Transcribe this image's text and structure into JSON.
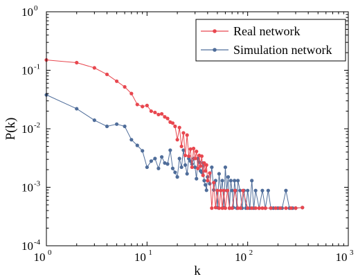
{
  "chart_data": {
    "type": "line",
    "xscale": "log",
    "yscale": "log",
    "xlim": [
      1,
      1000
    ],
    "ylim": [
      0.0001,
      1
    ],
    "xlabel": "k",
    "ylabel": "P(k)",
    "grid": false,
    "legend_position": "top-right",
    "x_tick_labels": [
      {
        "base": "10",
        "exp": "0"
      },
      {
        "base": "10",
        "exp": "1"
      },
      {
        "base": "10",
        "exp": "2"
      },
      {
        "base": "10",
        "exp": "3"
      }
    ],
    "y_tick_labels": [
      {
        "base": "10",
        "exp": "-4"
      },
      {
        "base": "10",
        "exp": "-3"
      },
      {
        "base": "10",
        "exp": "-2"
      },
      {
        "base": "10",
        "exp": "-1"
      },
      {
        "base": "10",
        "exp": "0"
      }
    ],
    "series": [
      {
        "name": "Real network",
        "color": "#e8474f",
        "x": [
          1,
          2,
          3,
          4,
          5,
          6,
          7,
          8,
          9,
          10,
          11,
          12,
          13,
          14,
          15,
          16,
          17,
          18,
          19,
          20,
          21,
          22,
          23,
          24,
          25,
          26,
          27,
          28,
          29,
          30,
          31,
          32,
          33,
          34,
          35,
          36,
          37,
          38,
          39,
          40,
          42,
          44,
          46,
          48,
          50,
          52,
          54,
          56,
          58,
          60,
          63,
          66,
          70,
          75,
          80,
          85,
          90,
          100,
          110,
          120,
          130,
          140,
          150,
          170,
          190,
          210,
          240,
          270,
          300,
          350
        ],
        "y": [
          0.15,
          0.135,
          0.11,
          0.085,
          0.065,
          0.052,
          0.04,
          0.026,
          0.024,
          0.025,
          0.02,
          0.019,
          0.0175,
          0.018,
          0.016,
          0.015,
          0.013,
          0.0125,
          0.011,
          0.0065,
          0.0105,
          0.005,
          0.0085,
          0.0035,
          0.0078,
          0.0034,
          0.0045,
          0.0022,
          0.0046,
          0.0031,
          0.0041,
          0.0021,
          0.0035,
          0.0023,
          0.0034,
          0.0016,
          0.0026,
          0.0019,
          0.0024,
          0.0013,
          0.00175,
          0.00044,
          0.0012,
          0.00045,
          0.00088,
          0.00044,
          0.00088,
          0.00044,
          0.00088,
          0.00044,
          0.00088,
          0.00044,
          0.00044,
          0.00088,
          0.00044,
          0.00044,
          0.00088,
          0.00044,
          0.00044,
          0.00044,
          0.00044,
          0.00044,
          0.00044,
          0.00044,
          0.00044,
          0.00044,
          0.00044,
          0.00044,
          0.00044,
          0.00045
        ]
      },
      {
        "name": "Simulation network",
        "color": "#4f6d9a",
        "x": [
          1,
          2,
          3,
          4,
          5,
          6,
          7,
          8,
          9,
          10,
          11,
          12,
          13,
          14,
          15,
          16,
          17,
          18,
          19,
          20,
          21,
          22,
          23,
          24,
          25,
          26,
          27,
          28,
          29,
          30,
          31,
          32,
          33,
          34,
          35,
          36,
          37,
          38,
          39,
          40,
          42,
          44,
          46,
          48,
          50,
          52,
          54,
          56,
          58,
          60,
          62,
          64,
          66,
          68,
          70,
          72,
          74,
          76,
          78,
          80,
          84,
          88,
          92,
          96,
          100,
          105,
          110,
          115,
          120,
          130,
          140,
          150,
          160,
          170,
          180,
          200,
          220,
          240,
          260,
          280,
          300,
          350
        ],
        "y": [
          0.038,
          0.022,
          0.014,
          0.011,
          0.012,
          0.011,
          0.0065,
          0.0052,
          0.0042,
          0.0022,
          0.0028,
          0.0031,
          0.0021,
          0.0033,
          0.0026,
          0.0025,
          0.0043,
          0.0021,
          0.0018,
          0.0015,
          0.0031,
          0.0022,
          0.0043,
          0.0024,
          0.0017,
          0.0031,
          0.0028,
          0.0025,
          0.0031,
          0.0022,
          0.0014,
          0.0031,
          0.0027,
          0.0019,
          0.0018,
          0.0026,
          0.0013,
          0.0011,
          0.00089,
          0.0015,
          0.00115,
          0.0022,
          0.0009,
          0.0013,
          0.00045,
          0.0017,
          0.00088,
          0.0013,
          0.00045,
          0.0022,
          0.00088,
          0.0015,
          0.00044,
          0.0013,
          0.00088,
          0.00045,
          0.0013,
          0.00088,
          0.00044,
          0.0013,
          0.00088,
          0.00044,
          0.00088,
          0.00044,
          0.00088,
          0.00044,
          0.0013,
          0.00044,
          0.00088,
          0.00044,
          0.00088,
          0.00044,
          0.00088,
          0.00044,
          0.00044,
          0.00044,
          0.00044,
          0.00088,
          0.00044,
          0.00044,
          0.00044,
          0.00045
        ]
      }
    ]
  }
}
